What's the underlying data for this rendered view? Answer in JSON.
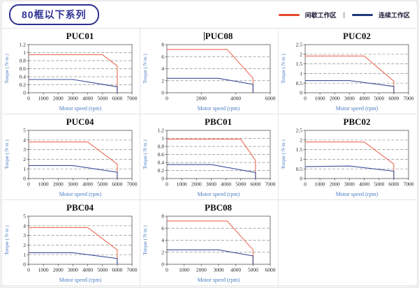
{
  "page": {
    "title": "80框以下系列",
    "legend": [
      {
        "label": "间歇工作区",
        "color": "#e8492a"
      },
      {
        "label": "连续工作区",
        "color": "#1e3a7c"
      }
    ],
    "legend_separator": "|"
  },
  "chart_data": [
    {
      "type": "line",
      "title": "PUC01",
      "xlabel": "Motor speed (rpm)",
      "ylabel": "Torque ( N·m )",
      "xlim": [
        0,
        7000
      ],
      "ylim": [
        0,
        1.2
      ],
      "xticks": [
        0,
        1000,
        2000,
        3000,
        4000,
        5000,
        6000,
        7000
      ],
      "yticks": [
        0,
        0.2,
        0.4,
        0.6,
        0.8,
        1,
        1.2
      ],
      "grid": "dashed-horizontal",
      "series": [
        {
          "name": "间歇工作区",
          "color": "#ec6a55",
          "points": [
            [
              0,
              0.95
            ],
            [
              5000,
              0.95
            ],
            [
              6000,
              0.67
            ],
            [
              6000,
              0
            ]
          ]
        },
        {
          "name": "连续工作区",
          "color": "#3c4f97",
          "points": [
            [
              0,
              0.33
            ],
            [
              3000,
              0.33
            ],
            [
              6000,
              0.15
            ],
            [
              6000,
              0
            ]
          ]
        }
      ]
    },
    {
      "type": "line",
      "title": "PUC08",
      "xlabel": "Motor speed (rpm)",
      "ylabel": "Torque ( N·m )",
      "xlim": [
        0,
        6000
      ],
      "ylim": [
        0,
        8
      ],
      "xticks": [
        0,
        2000,
        4000,
        6000
      ],
      "yticks": [
        0,
        2,
        4,
        6,
        8
      ],
      "grid": "dashed-horizontal",
      "series": [
        {
          "name": "间歇工作区",
          "color": "#ec6a55",
          "points": [
            [
              0,
              7.2
            ],
            [
              3500,
              7.2
            ],
            [
              5000,
              2.4
            ],
            [
              5000,
              0
            ]
          ]
        },
        {
          "name": "连续工作区",
          "color": "#3c4f97",
          "points": [
            [
              0,
              2.4
            ],
            [
              3000,
              2.4
            ],
            [
              5000,
              1.4
            ],
            [
              5000,
              0
            ]
          ]
        }
      ]
    },
    {
      "type": "line",
      "title": "PUC02",
      "xlabel": "Motor speed (rpm)",
      "ylabel": "Torque ( N·m )",
      "xlim": [
        0,
        7000
      ],
      "ylim": [
        0,
        2.5
      ],
      "xticks": [
        0,
        1000,
        2000,
        3000,
        4000,
        5000,
        6000,
        7000
      ],
      "yticks": [
        0,
        0.5,
        1,
        1.5,
        2,
        2.5
      ],
      "grid": "dashed-horizontal",
      "series": [
        {
          "name": "间歇工作区",
          "color": "#ec6a55",
          "points": [
            [
              0,
              1.91
            ],
            [
              4000,
              1.91
            ],
            [
              6000,
              0.6
            ],
            [
              6000,
              0
            ]
          ]
        },
        {
          "name": "连续工作区",
          "color": "#3c4f97",
          "points": [
            [
              0,
              0.63
            ],
            [
              3000,
              0.63
            ],
            [
              6000,
              0.33
            ],
            [
              6000,
              0
            ]
          ]
        }
      ]
    },
    {
      "type": "line",
      "title": "PUC04",
      "xlabel": "Motor speed (rpm)",
      "ylabel": "Torque ( N·m )",
      "xlim": [
        0,
        7000
      ],
      "ylim": [
        0,
        5
      ],
      "xticks": [
        0,
        1000,
        2000,
        3000,
        4000,
        5000,
        6000,
        7000
      ],
      "yticks": [
        0,
        1,
        2,
        3,
        4,
        5
      ],
      "grid": "dashed-horizontal",
      "series": [
        {
          "name": "间歇工作区",
          "color": "#ec6a55",
          "points": [
            [
              0,
              3.8
            ],
            [
              4000,
              3.8
            ],
            [
              6000,
              1.5
            ],
            [
              6000,
              0
            ]
          ]
        },
        {
          "name": "连续工作区",
          "color": "#3c4f97",
          "points": [
            [
              0,
              1.35
            ],
            [
              3000,
              1.35
            ],
            [
              6000,
              0.65
            ],
            [
              6000,
              0
            ]
          ]
        }
      ]
    },
    {
      "type": "line",
      "title": "PBC01",
      "xlabel": "Motor speed (rpm)",
      "ylabel": "Torque ( N·m )",
      "xlim": [
        0,
        7000
      ],
      "ylim": [
        0,
        1.2
      ],
      "xticks": [
        0,
        1000,
        2000,
        3000,
        4000,
        5000,
        6000,
        7000
      ],
      "yticks": [
        0,
        0.2,
        0.4,
        0.6,
        0.8,
        1,
        1.2
      ],
      "grid": "dashed-horizontal",
      "series": [
        {
          "name": "间歇工作区",
          "color": "#ec6a55",
          "points": [
            [
              0,
              0.98
            ],
            [
              5000,
              0.98
            ],
            [
              6000,
              0.45
            ],
            [
              6000,
              0
            ]
          ]
        },
        {
          "name": "连续工作区",
          "color": "#3c4f97",
          "points": [
            [
              0,
              0.35
            ],
            [
              3000,
              0.35
            ],
            [
              6000,
              0.15
            ],
            [
              6000,
              0
            ]
          ]
        }
      ]
    },
    {
      "type": "line",
      "title": "PBC02",
      "xlabel": "Motor speed (rpm)",
      "ylabel": "Torque ( N·m )",
      "xlim": [
        0,
        7000
      ],
      "ylim": [
        0,
        2.5
      ],
      "xticks": [
        0,
        1000,
        2000,
        3000,
        4000,
        5000,
        6000,
        7000
      ],
      "yticks": [
        0,
        0.5,
        1,
        1.5,
        2,
        2.5
      ],
      "grid": "dashed-horizontal",
      "series": [
        {
          "name": "间歇工作区",
          "color": "#ec6a55",
          "points": [
            [
              0,
              1.9
            ],
            [
              4000,
              1.9
            ],
            [
              6000,
              0.75
            ],
            [
              6000,
              0
            ]
          ]
        },
        {
          "name": "连续工作区",
          "color": "#3c4f97",
          "points": [
            [
              0,
              0.62
            ],
            [
              3000,
              0.65
            ],
            [
              6000,
              0.38
            ],
            [
              6000,
              0
            ]
          ]
        }
      ]
    },
    {
      "type": "line",
      "title": "PBC04",
      "xlabel": "Motor speed (rpm)",
      "ylabel": "Torque ( N·m )",
      "xlim": [
        0,
        7000
      ],
      "ylim": [
        0,
        5
      ],
      "xticks": [
        0,
        1000,
        2000,
        3000,
        4000,
        5000,
        6000,
        7000
      ],
      "yticks": [
        0,
        1,
        2,
        3,
        4,
        5
      ],
      "grid": "dashed-horizontal",
      "series": [
        {
          "name": "间歇工作区",
          "color": "#ec6a55",
          "points": [
            [
              0,
              3.82
            ],
            [
              4000,
              3.82
            ],
            [
              6000,
              1.5
            ],
            [
              6000,
              0
            ]
          ]
        },
        {
          "name": "连续工作区",
          "color": "#3c4f97",
          "points": [
            [
              0,
              1.2
            ],
            [
              3000,
              1.2
            ],
            [
              6000,
              0.6
            ],
            [
              6000,
              0
            ]
          ]
        }
      ]
    },
    {
      "type": "line",
      "title": "PBC08",
      "xlabel": "Motor speed (rpm)",
      "ylabel": "Torque ( N·m )",
      "xlim": [
        0,
        6000
      ],
      "ylim": [
        0,
        8
      ],
      "xticks": [
        0,
        1000,
        2000,
        3000,
        4000,
        5000,
        6000
      ],
      "yticks": [
        0,
        2,
        4,
        6,
        8
      ],
      "grid": "dashed-horizontal",
      "series": [
        {
          "name": "间歇工作区",
          "color": "#ec6a55",
          "points": [
            [
              0,
              7.2
            ],
            [
              3500,
              7.2
            ],
            [
              5000,
              2.4
            ],
            [
              5000,
              0
            ]
          ]
        },
        {
          "name": "连续工作区",
          "color": "#3c4f97",
          "points": [
            [
              0,
              2.4
            ],
            [
              3000,
              2.4
            ],
            [
              5000,
              1.4
            ],
            [
              5000,
              0
            ]
          ]
        }
      ]
    }
  ]
}
